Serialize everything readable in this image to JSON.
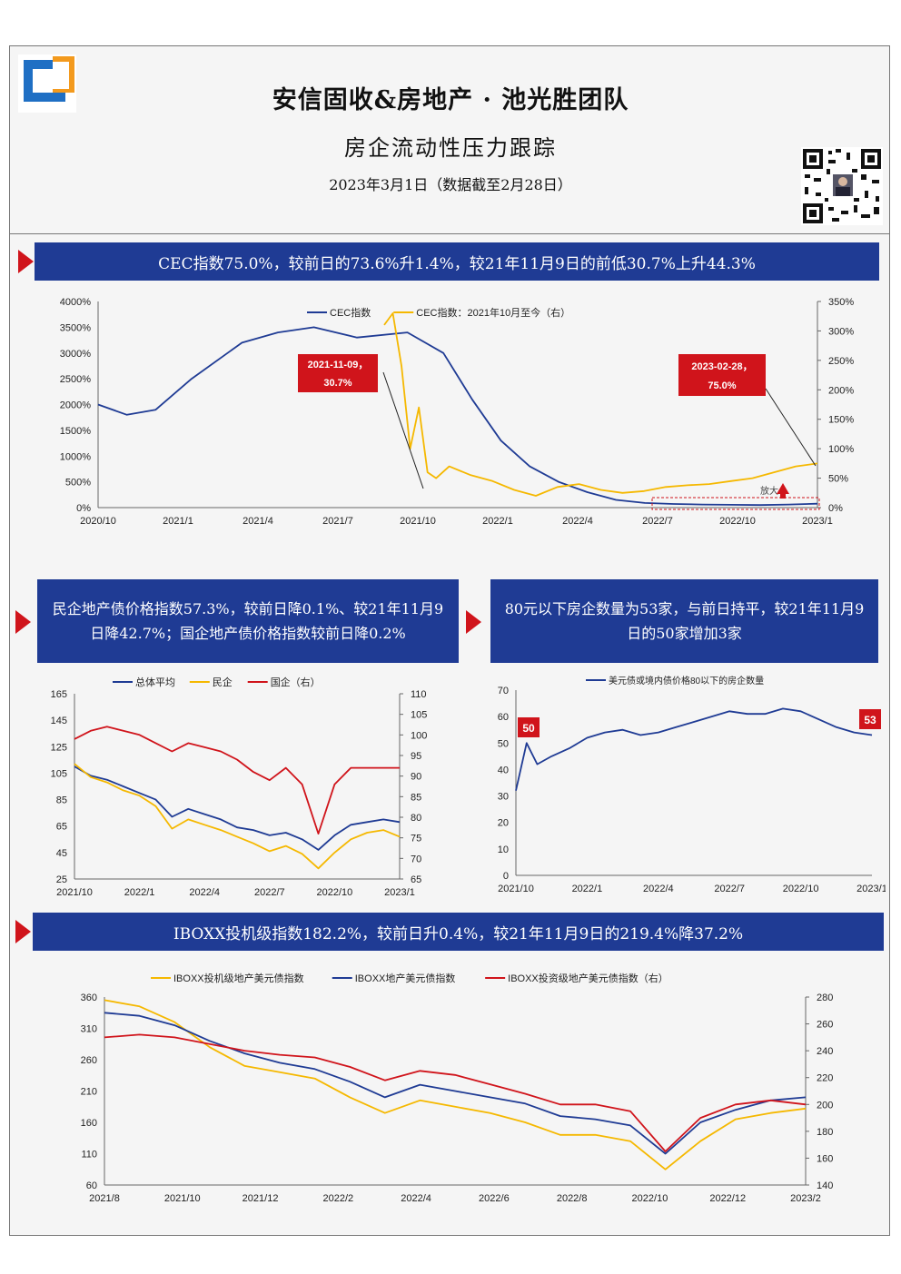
{
  "header": {
    "title": "安信固收&房地产 · 池光胜团队",
    "subtitle": "房企流动性压力跟踪",
    "date": "2023年3月1日（数据截至2月28日）"
  },
  "banners": {
    "b1": "CEC指数75.0%，较前日的73.6%升1.4%，较21年11月9日的前低30.7%上升44.3%",
    "b2": "民企地产债价格指数57.3%，较前日降0.1%、较21年11月9日降42.7%；国企地产债价格指数较前日降0.2%",
    "b3": "80元以下房企数量为53家，与前日持平，较21年11月9日的50家增加3家",
    "b4": "IBOXX投机级指数182.2%，较前日升0.4%，较21年11月9日的219.4%降37.2%"
  },
  "colors": {
    "navy": "#1f3b94",
    "red": "#d0141b",
    "yellow": "#f5b800",
    "blue": "#1f3b94"
  },
  "chart_data": [
    {
      "type": "line",
      "legend": [
        "CEC指数",
        "CEC指数：2021年10月至今（右）"
      ],
      "left_ticks": [
        "4000%",
        "3500%",
        "3000%",
        "2500%",
        "2000%",
        "1500%",
        "1000%",
        "500%",
        "0%"
      ],
      "right_ticks": [
        "350%",
        "300%",
        "250%",
        "200%",
        "150%",
        "100%",
        "50%",
        "0%"
      ],
      "x_ticks": [
        "2020/10",
        "2021/1",
        "2021/4",
        "2021/7",
        "2021/10",
        "2022/1",
        "2022/4",
        "2022/7",
        "2022/10",
        "2023/1"
      ],
      "ylim": [
        0,
        4000
      ],
      "y2lim": [
        0,
        350
      ],
      "series": [
        {
          "name": "CEC指数",
          "axis": "left",
          "x": [
            0,
            0.04,
            0.08,
            0.13,
            0.2,
            0.25,
            0.3,
            0.36,
            0.43,
            0.48,
            0.52,
            0.56,
            0.6,
            0.64,
            0.68,
            0.72,
            0.76,
            0.8,
            0.84,
            0.88,
            0.92,
            0.96,
            1.0
          ],
          "values": [
            2000,
            1800,
            1900,
            2500,
            3200,
            3400,
            3500,
            3300,
            3400,
            3000,
            2100,
            1300,
            800,
            500,
            300,
            150,
            90,
            70,
            60,
            55,
            50,
            60,
            75
          ]
        },
        {
          "name": "CEC指数：2021年10月至今（右）",
          "axis": "right",
          "x": [
            0.0,
            0.02,
            0.04,
            0.06,
            0.08,
            0.1,
            0.12,
            0.15,
            0.2,
            0.25,
            0.3,
            0.35,
            0.4,
            0.45,
            0.5,
            0.55,
            0.6,
            0.65,
            0.7,
            0.75,
            0.8,
            0.85,
            0.9,
            0.95,
            1.0
          ],
          "values": [
            310,
            330,
            240,
            100,
            170,
            60,
            50,
            70,
            55,
            45,
            30,
            20,
            35,
            40,
            30,
            25,
            28,
            35,
            38,
            40,
            45,
            50,
            60,
            70,
            75
          ]
        }
      ],
      "annotations": [
        {
          "label": "2021-11-09，30.7%",
          "x": "2021-11-09",
          "y": 30.7
        },
        {
          "label": "2023-02-28，75.0%",
          "x": "2023-02-28",
          "y": 75.0
        },
        {
          "label": "放大"
        }
      ]
    },
    {
      "type": "line",
      "legend": [
        "总体平均",
        "民企",
        "国企（右）"
      ],
      "left_ticks": [
        "165",
        "145",
        "125",
        "105",
        "85",
        "65",
        "45",
        "25"
      ],
      "right_ticks": [
        "110",
        "105",
        "100",
        "95",
        "90",
        "85",
        "80",
        "75",
        "70",
        "65"
      ],
      "x_ticks": [
        "2021/10",
        "2022/1",
        "2022/4",
        "2022/7",
        "2022/10",
        "2023/1"
      ],
      "ylim": [
        25,
        165
      ],
      "y2lim": [
        65,
        110
      ],
      "series": [
        {
          "name": "总体平均",
          "axis": "left",
          "x": [
            0,
            0.05,
            0.1,
            0.15,
            0.2,
            0.25,
            0.3,
            0.35,
            0.4,
            0.45,
            0.5,
            0.55,
            0.6,
            0.65,
            0.7,
            0.75,
            0.8,
            0.85,
            0.9,
            0.95,
            1.0
          ],
          "values": [
            110,
            103,
            100,
            95,
            90,
            85,
            72,
            78,
            74,
            70,
            64,
            62,
            58,
            60,
            55,
            47,
            58,
            66,
            68,
            70,
            68
          ]
        },
        {
          "name": "民企",
          "axis": "left",
          "x": [
            0,
            0.05,
            0.1,
            0.15,
            0.2,
            0.25,
            0.3,
            0.35,
            0.4,
            0.45,
            0.5,
            0.55,
            0.6,
            0.65,
            0.7,
            0.75,
            0.8,
            0.85,
            0.9,
            0.95,
            1.0
          ],
          "values": [
            112,
            102,
            98,
            92,
            88,
            80,
            63,
            70,
            66,
            62,
            57,
            52,
            46,
            50,
            44,
            33,
            45,
            55,
            60,
            62,
            57
          ]
        },
        {
          "name": "国企（右）",
          "axis": "right",
          "x": [
            0,
            0.05,
            0.1,
            0.15,
            0.2,
            0.25,
            0.3,
            0.35,
            0.4,
            0.45,
            0.5,
            0.55,
            0.6,
            0.65,
            0.7,
            0.75,
            0.8,
            0.85,
            0.9,
            0.95,
            1.0
          ],
          "values": [
            99,
            101,
            102,
            101,
            100,
            98,
            96,
            98,
            97,
            96,
            94,
            91,
            89,
            92,
            88,
            76,
            88,
            92,
            92,
            92,
            92
          ]
        }
      ]
    },
    {
      "type": "line",
      "legend": [
        "美元债或境内债价格80以下的房企数量"
      ],
      "left_ticks": [
        "70",
        "60",
        "50",
        "40",
        "30",
        "20",
        "10",
        "0"
      ],
      "x_ticks": [
        "2021/10",
        "2022/1",
        "2022/4",
        "2022/7",
        "2022/10",
        "2023/1"
      ],
      "ylim": [
        0,
        70
      ],
      "series": [
        {
          "name": "美元债或境内债价格80以下的房企数量",
          "axis": "left",
          "x": [
            0,
            0.03,
            0.06,
            0.1,
            0.15,
            0.2,
            0.25,
            0.3,
            0.35,
            0.4,
            0.45,
            0.5,
            0.55,
            0.6,
            0.65,
            0.7,
            0.75,
            0.8,
            0.85,
            0.9,
            0.95,
            1.0
          ],
          "values": [
            32,
            50,
            42,
            45,
            48,
            52,
            54,
            55,
            53,
            54,
            56,
            58,
            60,
            62,
            61,
            61,
            63,
            62,
            59,
            56,
            54,
            53
          ]
        }
      ],
      "annotations": [
        {
          "label": "50"
        },
        {
          "label": "53"
        }
      ]
    },
    {
      "type": "line",
      "legend": [
        "IBOXX投机级地产美元债指数",
        "IBOXX地产美元债指数",
        "IBOXX投资级地产美元债指数（右）"
      ],
      "left_ticks": [
        "360",
        "310",
        "260",
        "210",
        "160",
        "110",
        "60"
      ],
      "right_ticks": [
        "280",
        "260",
        "240",
        "220",
        "200",
        "180",
        "160",
        "140"
      ],
      "x_ticks": [
        "2021/8",
        "2021/10",
        "2021/12",
        "2022/2",
        "2022/4",
        "2022/6",
        "2022/8",
        "2022/10",
        "2022/12",
        "2023/2"
      ],
      "ylim": [
        60,
        360
      ],
      "y2lim": [
        140,
        280
      ],
      "series": [
        {
          "name": "IBOXX投机级地产美元债指数",
          "axis": "left",
          "x": [
            0,
            0.05,
            0.1,
            0.15,
            0.2,
            0.25,
            0.3,
            0.35,
            0.4,
            0.45,
            0.5,
            0.55,
            0.6,
            0.65,
            0.7,
            0.75,
            0.8,
            0.85,
            0.9,
            0.95,
            1.0
          ],
          "values": [
            355,
            345,
            320,
            280,
            250,
            240,
            230,
            200,
            175,
            195,
            185,
            175,
            160,
            140,
            140,
            130,
            85,
            130,
            165,
            175,
            182
          ]
        },
        {
          "name": "IBOXX地产美元债指数",
          "axis": "left",
          "x": [
            0,
            0.05,
            0.1,
            0.15,
            0.2,
            0.25,
            0.3,
            0.35,
            0.4,
            0.45,
            0.5,
            0.55,
            0.6,
            0.65,
            0.7,
            0.75,
            0.8,
            0.85,
            0.9,
            0.95,
            1.0
          ],
          "values": [
            335,
            330,
            315,
            290,
            270,
            255,
            245,
            225,
            200,
            220,
            210,
            200,
            190,
            170,
            165,
            155,
            110,
            160,
            180,
            195,
            200
          ]
        },
        {
          "name": "IBOXX投资级地产美元债指数（右）",
          "axis": "right",
          "x": [
            0,
            0.05,
            0.1,
            0.15,
            0.2,
            0.25,
            0.3,
            0.35,
            0.4,
            0.45,
            0.5,
            0.55,
            0.6,
            0.65,
            0.7,
            0.75,
            0.8,
            0.85,
            0.9,
            0.95,
            1.0
          ],
          "values": [
            250,
            252,
            250,
            245,
            240,
            237,
            235,
            228,
            218,
            225,
            222,
            215,
            208,
            200,
            200,
            195,
            165,
            190,
            200,
            203,
            200
          ]
        }
      ]
    }
  ]
}
